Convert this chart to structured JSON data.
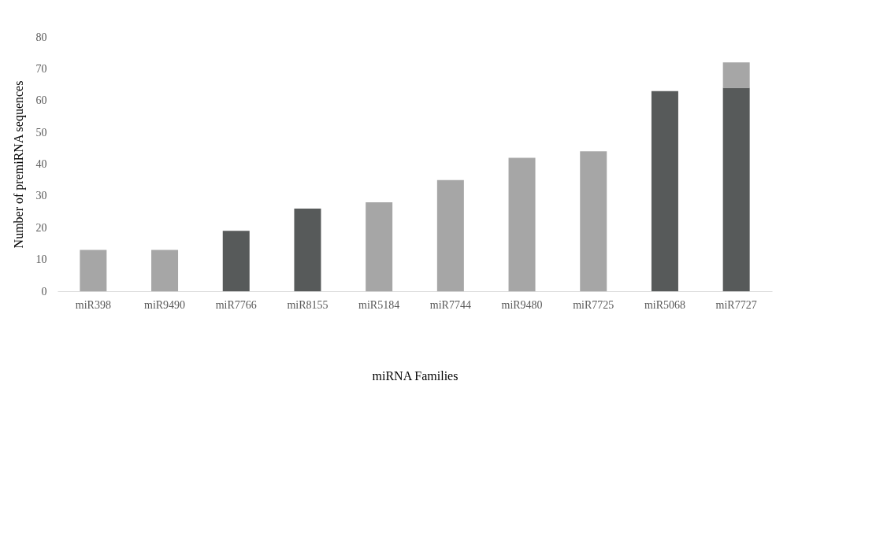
{
  "chart_data": {
    "type": "bar",
    "stacked": true,
    "xlabel": "miRNA Families",
    "ylabel": "Number of premiRNA sequences",
    "categories": [
      "miR398",
      "miR9490",
      "miR7766",
      "miR8155",
      "miR5184",
      "miR7744",
      "miR9480",
      "miR7725",
      "miR5068",
      "miR7727"
    ],
    "series": [
      {
        "color": "#575a5a",
        "values": [
          null,
          null,
          19,
          26,
          null,
          null,
          null,
          null,
          63,
          64
        ]
      },
      {
        "color": "#a6a6a6",
        "values": [
          13,
          13,
          null,
          null,
          28,
          35,
          42,
          44,
          null,
          8
        ]
      }
    ],
    "ylim": [
      0,
      80
    ],
    "yticks": [
      0,
      10,
      20,
      30,
      40,
      50,
      60,
      70,
      80
    ],
    "grid": false
  }
}
